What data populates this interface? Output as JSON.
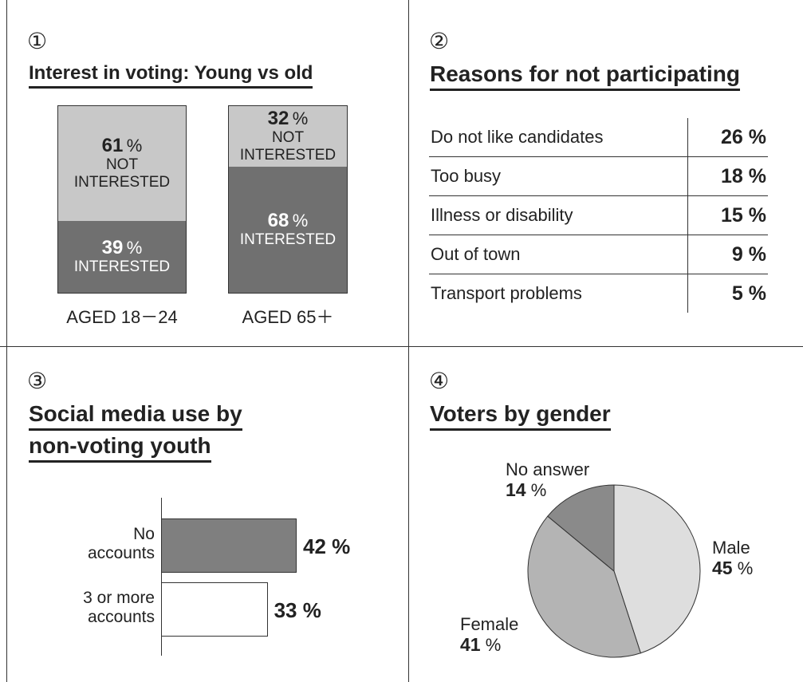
{
  "chart_data": [
    {
      "type": "bar",
      "number": "①",
      "title": "Interest in voting: Young vs old",
      "stacked": true,
      "categories": [
        "AGED 18－24",
        "AGED 65＋"
      ],
      "series": [
        {
          "name": "NOT\nINTERESTED",
          "values": [
            61,
            32
          ],
          "color": "#c8c8c8"
        },
        {
          "name": "INTERESTED",
          "values": [
            39,
            68
          ],
          "color": "#707070"
        }
      ],
      "unit": "%",
      "ylim": [
        0,
        100
      ]
    },
    {
      "type": "table",
      "number": "②",
      "title": "Reasons for not participating",
      "rows": [
        {
          "label": "Do not like candidates",
          "value": "26"
        },
        {
          "label": "Too busy",
          "value": "18"
        },
        {
          "label": "Illness or disability",
          "value": "15"
        },
        {
          "label": "Out of town",
          "value": "9"
        },
        {
          "label": "Transport problems",
          "value": "5"
        }
      ],
      "unit": "%"
    },
    {
      "type": "bar",
      "orientation": "horizontal",
      "number": "③",
      "title_lines": [
        "Social media use by",
        "non-voting youth"
      ],
      "categories": [
        "No\naccounts",
        "3 or more\naccounts"
      ],
      "values": [
        42,
        33
      ],
      "colors": [
        "#7f7f7f",
        "#ffffff"
      ],
      "unit": "%",
      "xlim": [
        0,
        45
      ]
    },
    {
      "type": "pie",
      "number": "④",
      "title": "Voters by gender",
      "slices": [
        {
          "label": "Male",
          "value": 45,
          "color": "#dedede"
        },
        {
          "label": "Female",
          "value": 41,
          "color": "#b4b4b4"
        },
        {
          "label": "No answer",
          "value": 14,
          "color": "#8a8a8a"
        }
      ],
      "unit": "%",
      "start": "12 o'clock, clockwise"
    }
  ]
}
